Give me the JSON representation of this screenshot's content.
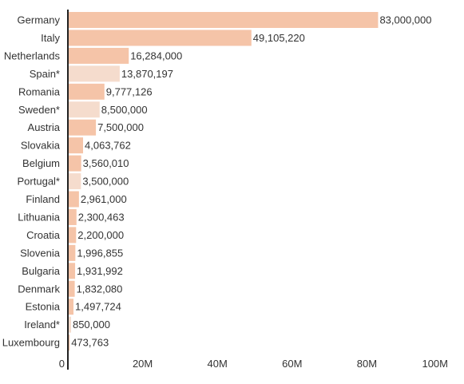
{
  "chart_data": {
    "type": "bar",
    "orientation": "horizontal",
    "categories": [
      "Germany",
      "Italy",
      "Netherlands",
      "Spain*",
      "Romania",
      "Sweden*",
      "Austria",
      "Slovakia",
      "Belgium",
      "Portugal*",
      "Finland",
      "Lithuania",
      "Croatia",
      "Slovenia",
      "Bulgaria",
      "Denmark",
      "Estonia",
      "Ireland*",
      "Luxembourg"
    ],
    "values": [
      83000000,
      49105220,
      16284000,
      13870197,
      9777126,
      8500000,
      7500000,
      4063762,
      3560010,
      3500000,
      2961000,
      2300463,
      2200000,
      1996855,
      1931992,
      1832080,
      1497724,
      850000,
      473763
    ],
    "value_labels": [
      "83,000,000",
      "49,105,220",
      "16,284,000",
      "13,870,197",
      "9,777,126",
      "8,500,000",
      "7,500,000",
      "4,063,762",
      "3,560,010",
      "3,500,000",
      "2,961,000",
      "2,300,463",
      "2,200,000",
      "1,996,855",
      "1,931,992",
      "1,832,080",
      "1,497,724",
      "850,000",
      "473,763"
    ],
    "highlighted": [
      false,
      false,
      false,
      true,
      false,
      true,
      false,
      false,
      false,
      true,
      false,
      false,
      false,
      false,
      false,
      false,
      false,
      true,
      false
    ],
    "xlim": [
      0,
      100000000
    ],
    "xticks": [
      0,
      20000000,
      40000000,
      60000000,
      80000000,
      100000000
    ],
    "xtick_labels": [
      "0",
      "20M",
      "40M",
      "60M",
      "80M",
      "100M"
    ],
    "title": "",
    "xlabel": "",
    "ylabel": "",
    "grid": false,
    "legend": "none",
    "colors": {
      "bar": "#f5c4a8",
      "bar_highlight": "#f5dccd",
      "axis": "#222222",
      "text": "#333333"
    }
  }
}
